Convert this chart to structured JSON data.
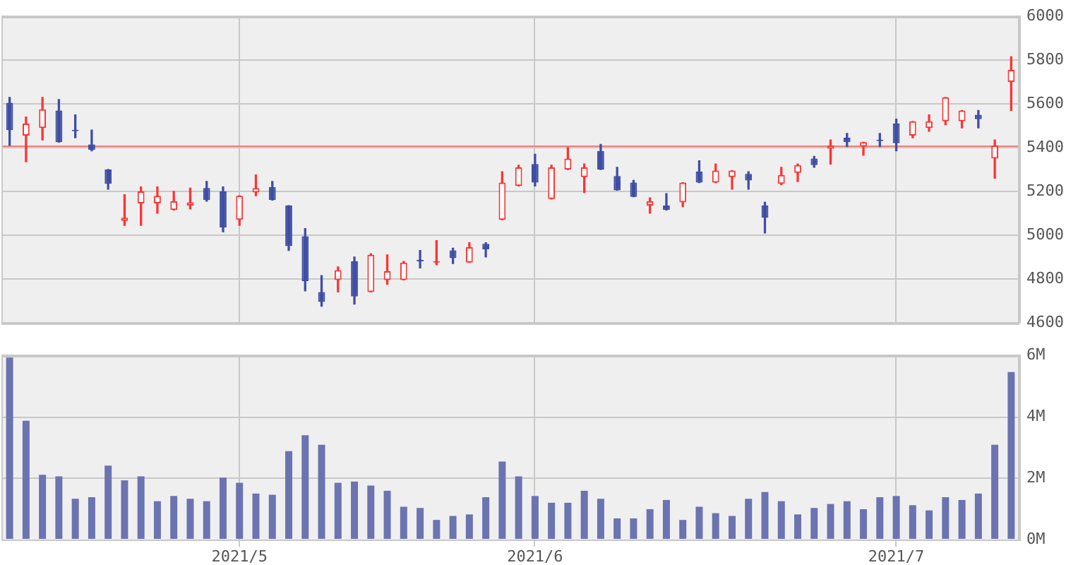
{
  "chart_data": [
    {
      "type": "candlestick",
      "categories": [
        null,
        null,
        null,
        null,
        null,
        null,
        null,
        null,
        null,
        null,
        null,
        null,
        null,
        null,
        "2021/5",
        null,
        null,
        null,
        null,
        null,
        null,
        null,
        null,
        null,
        null,
        null,
        null,
        null,
        null,
        null,
        null,
        null,
        "2021/6",
        null,
        null,
        null,
        null,
        null,
        null,
        null,
        null,
        null,
        null,
        null,
        null,
        null,
        null,
        null,
        null,
        null,
        null,
        null,
        null,
        null,
        "2021/7",
        null,
        null,
        null,
        null,
        null,
        null,
        null
      ],
      "ohlc": [
        [
          5605,
          5630,
          5410,
          5480
        ],
        [
          5455,
          5540,
          5335,
          5510
        ],
        [
          5490,
          5630,
          5435,
          5575
        ],
        [
          5570,
          5620,
          5425,
          5425
        ],
        [
          5480,
          5550,
          5445,
          5475
        ],
        [
          5415,
          5480,
          5385,
          5390
        ],
        [
          5300,
          5300,
          5210,
          5235
        ],
        [
          5065,
          5185,
          5045,
          5080
        ],
        [
          5145,
          5220,
          5045,
          5200
        ],
        [
          5145,
          5220,
          5100,
          5180
        ],
        [
          5115,
          5200,
          5115,
          5155
        ],
        [
          5135,
          5215,
          5120,
          5150
        ],
        [
          5215,
          5245,
          5155,
          5160
        ],
        [
          5200,
          5220,
          5015,
          5035
        ],
        [
          5070,
          5180,
          5045,
          5180
        ],
        [
          5195,
          5275,
          5180,
          5215
        ],
        [
          5220,
          5245,
          5160,
          5160
        ],
        [
          5135,
          5135,
          4930,
          4950
        ],
        [
          4995,
          5030,
          4745,
          4790
        ],
        [
          4740,
          4815,
          4675,
          4695
        ],
        [
          4795,
          4855,
          4740,
          4840
        ],
        [
          4880,
          4900,
          4685,
          4720
        ],
        [
          4740,
          4915,
          4740,
          4910
        ],
        [
          4795,
          4910,
          4775,
          4835
        ],
        [
          4795,
          4880,
          4795,
          4875
        ],
        [
          4880,
          4930,
          4850,
          4880
        ],
        [
          4875,
          4975,
          4865,
          4880
        ],
        [
          4930,
          4940,
          4870,
          4895
        ],
        [
          4875,
          4965,
          4875,
          4945
        ],
        [
          4960,
          4965,
          4900,
          4935
        ],
        [
          5070,
          5290,
          5070,
          5240
        ],
        [
          5225,
          5320,
          5225,
          5310
        ],
        [
          5325,
          5370,
          5225,
          5240
        ],
        [
          5165,
          5320,
          5165,
          5310
        ],
        [
          5300,
          5400,
          5300,
          5350
        ],
        [
          5265,
          5325,
          5195,
          5310
        ],
        [
          5385,
          5415,
          5300,
          5300
        ],
        [
          5270,
          5310,
          5205,
          5205
        ],
        [
          5240,
          5250,
          5175,
          5175
        ],
        [
          5135,
          5170,
          5100,
          5155
        ],
        [
          5135,
          5190,
          5115,
          5115
        ],
        [
          5150,
          5240,
          5130,
          5240
        ],
        [
          5290,
          5340,
          5240,
          5240
        ],
        [
          5240,
          5325,
          5240,
          5295
        ],
        [
          5265,
          5295,
          5210,
          5295
        ],
        [
          5280,
          5290,
          5210,
          5250
        ],
        [
          5135,
          5150,
          5010,
          5080
        ],
        [
          5235,
          5310,
          5230,
          5275
        ],
        [
          5285,
          5325,
          5245,
          5320
        ],
        [
          5350,
          5360,
          5310,
          5320
        ],
        [
          5395,
          5435,
          5325,
          5410
        ],
        [
          5445,
          5465,
          5405,
          5425
        ],
        [
          5405,
          5425,
          5365,
          5425
        ],
        [
          5430,
          5465,
          5405,
          5430
        ],
        [
          5510,
          5530,
          5385,
          5420
        ],
        [
          5455,
          5520,
          5445,
          5520
        ],
        [
          5490,
          5550,
          5475,
          5520
        ],
        [
          5520,
          5630,
          5505,
          5630
        ],
        [
          5520,
          5570,
          5490,
          5570
        ],
        [
          5550,
          5570,
          5490,
          5530
        ],
        [
          5350,
          5435,
          5260,
          5410
        ],
        [
          5700,
          5815,
          5570,
          5755
        ]
      ],
      "colors": [
        "#3f4ea3",
        "#ff3333",
        "#ff3333",
        "#3f4ea3",
        "#3f4ea3",
        "#3f4ea3",
        "#3f4ea3",
        "#ff3333",
        "#ff3333",
        "#ff3333",
        "#ff3333",
        "#ff3333",
        "#3f4ea3",
        "#3f4ea3",
        "#ff3333",
        "#ff3333",
        "#3f4ea3",
        "#3f4ea3",
        "#3f4ea3",
        "#3f4ea3",
        "#ff3333",
        "#3f4ea3",
        "#ff3333",
        "#ff3333",
        "#ff3333",
        "#3f4ea3",
        "#ff3333",
        "#3f4ea3",
        "#ff3333",
        "#3f4ea3",
        "#ff3333",
        "#ff3333",
        "#3f4ea3",
        "#ff3333",
        "#ff3333",
        "#ff3333",
        "#3f4ea3",
        "#3f4ea3",
        "#3f4ea3",
        "#ff3333",
        "#3f4ea3",
        "#ff3333",
        "#3f4ea3",
        "#ff3333",
        "#ff3333",
        "#3f4ea3",
        "#3f4ea3",
        "#ff3333",
        "#ff3333",
        "#3f4ea3",
        "#ff3333",
        "#3f4ea3",
        "#ff3333",
        "#3f4ea3",
        "#3f4ea3",
        "#ff3333",
        "#ff3333",
        "#ff3333",
        "#ff3333",
        "#3f4ea3",
        "#ff3333",
        "#ff3333"
      ],
      "ylim": [
        4600,
        6000
      ],
      "yticks": [
        4600,
        4800,
        5000,
        5200,
        5400,
        5600,
        5800,
        6000
      ],
      "grid": true,
      "tick_labels": "y",
      "ref_lines": [
        {
          "axis": "y",
          "value": 5410,
          "color": "#f08080"
        }
      ]
    },
    {
      "type": "bar",
      "categories": [
        null,
        null,
        null,
        null,
        null,
        null,
        null,
        null,
        null,
        null,
        null,
        null,
        null,
        null,
        "2021/5",
        null,
        null,
        null,
        null,
        null,
        null,
        null,
        null,
        null,
        null,
        null,
        null,
        null,
        null,
        null,
        null,
        null,
        "2021/6",
        null,
        null,
        null,
        null,
        null,
        null,
        null,
        null,
        null,
        null,
        null,
        null,
        null,
        null,
        null,
        null,
        null,
        null,
        null,
        null,
        null,
        "2021/7",
        null,
        null,
        null,
        null,
        null,
        null,
        null
      ],
      "values": [
        5.93,
        3.87,
        2.11,
        2.06,
        1.33,
        1.38,
        2.41,
        1.93,
        2.06,
        1.25,
        1.42,
        1.33,
        1.25,
        2.02,
        1.85,
        1.5,
        1.46,
        2.88,
        3.4,
        3.09,
        1.85,
        1.89,
        1.76,
        1.59,
        1.07,
        1.03,
        0.64,
        0.77,
        0.82,
        1.38,
        2.54,
        2.06,
        1.42,
        1.2,
        1.2,
        1.59,
        1.33,
        0.69,
        0.69,
        0.99,
        1.29,
        0.64,
        1.07,
        0.86,
        0.77,
        1.33,
        1.55,
        1.25,
        0.82,
        1.03,
        1.16,
        1.25,
        0.99,
        1.38,
        1.42,
        1.12,
        0.95,
        1.38,
        1.29,
        1.5,
        3.09,
        5.46
      ],
      "color": "#6b74b0",
      "ylim": [
        0,
        6
      ],
      "yticks": [
        {
          "value": 0,
          "label": "0M"
        },
        {
          "value": 2,
          "label": "2M"
        },
        {
          "value": 4,
          "label": "4M"
        },
        {
          "value": 6,
          "label": "6M"
        }
      ],
      "grid": true
    }
  ]
}
